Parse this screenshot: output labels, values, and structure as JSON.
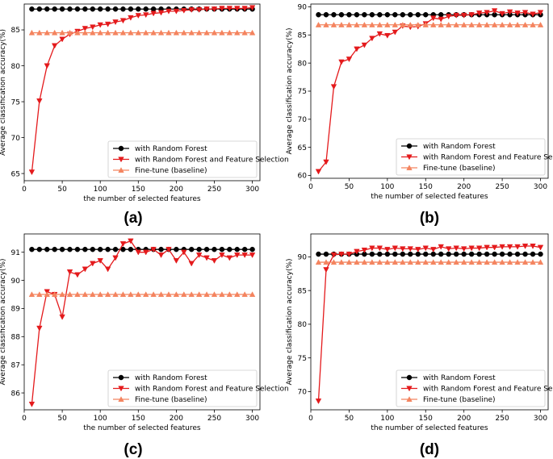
{
  "colors": {
    "rf": "#000000",
    "rffs": "#e41a1c",
    "baseline": "#f4845f"
  },
  "chart_data": [
    {
      "type": "line",
      "panel_label": "(a)",
      "xlabel": "the number of selected features",
      "ylabel": "Average classification accuracy(%)",
      "xlim": [
        0,
        310
      ],
      "ylim": [
        64,
        88.6
      ],
      "xticks": [
        "0",
        "50",
        "100",
        "150",
        "200",
        "250",
        "300"
      ],
      "xtick_values": [
        0,
        50,
        100,
        150,
        200,
        250,
        300
      ],
      "yticks": [
        "65",
        "70",
        "75",
        "80",
        "85"
      ],
      "ytick_values": [
        65,
        70,
        75,
        80,
        85
      ],
      "legend_position": "lower-right",
      "x": [
        10,
        20,
        30,
        40,
        50,
        60,
        70,
        80,
        90,
        100,
        110,
        120,
        130,
        140,
        150,
        160,
        170,
        180,
        190,
        200,
        210,
        220,
        230,
        240,
        250,
        260,
        270,
        280,
        290,
        300
      ],
      "series": [
        {
          "name": "with Random Forest",
          "marker": "circle",
          "values": [
            87.9,
            87.9,
            87.9,
            87.9,
            87.9,
            87.9,
            87.9,
            87.9,
            87.9,
            87.9,
            87.9,
            87.9,
            87.9,
            87.9,
            87.9,
            87.9,
            87.9,
            87.9,
            87.9,
            87.9,
            87.9,
            87.9,
            87.9,
            87.9,
            87.9,
            87.9,
            87.9,
            87.9,
            87.9,
            87.9
          ]
        },
        {
          "name": "with Random Forest and Feature Selection",
          "marker": "triangle-down",
          "values": [
            65.2,
            75.1,
            80.0,
            82.8,
            83.7,
            84.4,
            84.8,
            85.2,
            85.4,
            85.7,
            85.8,
            86.1,
            86.3,
            86.7,
            87.0,
            87.1,
            87.3,
            87.4,
            87.6,
            87.6,
            87.7,
            87.8,
            87.8,
            87.9,
            87.9,
            88.0,
            88.0,
            88.0,
            88.0,
            88.1
          ]
        },
        {
          "name": "Fine-tune (baseline)",
          "marker": "triangle-up",
          "values": [
            84.6,
            84.6,
            84.6,
            84.6,
            84.6,
            84.6,
            84.6,
            84.6,
            84.6,
            84.6,
            84.6,
            84.6,
            84.6,
            84.6,
            84.6,
            84.6,
            84.6,
            84.6,
            84.6,
            84.6,
            84.6,
            84.6,
            84.6,
            84.6,
            84.6,
            84.6,
            84.6,
            84.6,
            84.6,
            84.6
          ]
        }
      ]
    },
    {
      "type": "line",
      "panel_label": "(b)",
      "xlabel": "the number of selected features",
      "ylabel": "Average classification accuracy(%)",
      "xlim": [
        0,
        310
      ],
      "ylim": [
        59.5,
        90.5
      ],
      "xticks": [
        "0",
        "50",
        "100",
        "150",
        "200",
        "250",
        "300"
      ],
      "xtick_values": [
        0,
        50,
        100,
        150,
        200,
        250,
        300
      ],
      "yticks": [
        "60",
        "65",
        "70",
        "75",
        "80",
        "85",
        "90"
      ],
      "ytick_values": [
        60,
        65,
        70,
        75,
        80,
        85,
        90
      ],
      "legend_position": "lower-right",
      "x": [
        10,
        20,
        30,
        40,
        50,
        60,
        70,
        80,
        90,
        100,
        110,
        120,
        130,
        140,
        150,
        160,
        170,
        180,
        190,
        200,
        210,
        220,
        230,
        240,
        250,
        260,
        270,
        280,
        290,
        300
      ],
      "series": [
        {
          "name": "with Random Forest",
          "marker": "circle",
          "values": [
            88.6,
            88.6,
            88.6,
            88.6,
            88.6,
            88.6,
            88.6,
            88.6,
            88.6,
            88.6,
            88.6,
            88.6,
            88.6,
            88.6,
            88.6,
            88.6,
            88.6,
            88.6,
            88.6,
            88.6,
            88.6,
            88.6,
            88.6,
            88.6,
            88.6,
            88.6,
            88.6,
            88.6,
            88.6,
            88.6
          ]
        },
        {
          "name": "with Random Forest and Feature Selection",
          "marker": "triangle-down",
          "values": [
            60.7,
            62.4,
            75.8,
            80.2,
            80.7,
            82.5,
            83.2,
            84.4,
            85.2,
            84.9,
            85.5,
            86.6,
            86.4,
            86.5,
            87.0,
            88.0,
            87.8,
            88.3,
            88.5,
            88.5,
            88.6,
            88.9,
            89.0,
            89.3,
            88.8,
            89.1,
            88.9,
            89.0,
            88.7,
            89.0
          ]
        },
        {
          "name": "Fine-tune (baseline)",
          "marker": "triangle-up",
          "values": [
            86.8,
            86.8,
            86.8,
            86.8,
            86.8,
            86.8,
            86.8,
            86.8,
            86.8,
            86.8,
            86.8,
            86.8,
            86.8,
            86.8,
            86.8,
            86.8,
            86.8,
            86.8,
            86.8,
            86.8,
            86.8,
            86.8,
            86.8,
            86.8,
            86.8,
            86.8,
            86.8,
            86.8,
            86.8,
            86.8
          ]
        }
      ]
    },
    {
      "type": "line",
      "panel_label": "(c)",
      "xlabel": "the number of selected features",
      "ylabel": "Average classification accuracy(%)",
      "xlim": [
        0,
        310
      ],
      "ylim": [
        85.4,
        91.65
      ],
      "xticks": [
        "0",
        "50",
        "100",
        "150",
        "200",
        "250",
        "300"
      ],
      "xtick_values": [
        0,
        50,
        100,
        150,
        200,
        250,
        300
      ],
      "yticks": [
        "86",
        "87",
        "88",
        "89",
        "90",
        "91"
      ],
      "ytick_values": [
        86,
        87,
        88,
        89,
        90,
        91
      ],
      "legend_position": "lower-right",
      "x": [
        10,
        20,
        30,
        40,
        50,
        60,
        70,
        80,
        90,
        100,
        110,
        120,
        130,
        140,
        150,
        160,
        170,
        180,
        190,
        200,
        210,
        220,
        230,
        240,
        250,
        260,
        270,
        280,
        290,
        300
      ],
      "series": [
        {
          "name": "with Random Forest",
          "marker": "circle",
          "values": [
            91.1,
            91.1,
            91.1,
            91.1,
            91.1,
            91.1,
            91.1,
            91.1,
            91.1,
            91.1,
            91.1,
            91.1,
            91.1,
            91.1,
            91.1,
            91.1,
            91.1,
            91.1,
            91.1,
            91.1,
            91.1,
            91.1,
            91.1,
            91.1,
            91.1,
            91.1,
            91.1,
            91.1,
            91.1,
            91.1
          ]
        },
        {
          "name": "with Random Forest and Feature Selection",
          "marker": "triangle-down",
          "values": [
            85.6,
            88.3,
            89.6,
            89.5,
            88.7,
            90.3,
            90.2,
            90.4,
            90.6,
            90.7,
            90.4,
            90.8,
            91.3,
            91.4,
            91.0,
            91.0,
            91.1,
            90.9,
            91.1,
            90.7,
            91.0,
            90.6,
            90.9,
            90.8,
            90.7,
            90.9,
            90.8,
            90.9,
            90.9,
            90.9
          ]
        },
        {
          "name": "Fine-tune (baseline)",
          "marker": "triangle-up",
          "values": [
            89.5,
            89.5,
            89.5,
            89.5,
            89.5,
            89.5,
            89.5,
            89.5,
            89.5,
            89.5,
            89.5,
            89.5,
            89.5,
            89.5,
            89.5,
            89.5,
            89.5,
            89.5,
            89.5,
            89.5,
            89.5,
            89.5,
            89.5,
            89.5,
            89.5,
            89.5,
            89.5,
            89.5,
            89.5,
            89.5
          ]
        }
      ]
    },
    {
      "type": "line",
      "panel_label": "(d)",
      "xlabel": "the number of selected features",
      "ylabel": "Average classification accuracy(%)",
      "xlim": [
        0,
        310
      ],
      "ylim": [
        67.3,
        93.4
      ],
      "xticks": [
        "0",
        "50",
        "100",
        "150",
        "200",
        "250",
        "300"
      ],
      "xtick_values": [
        0,
        50,
        100,
        150,
        200,
        250,
        300
      ],
      "yticks": [
        "70",
        "75",
        "80",
        "85",
        "90"
      ],
      "ytick_values": [
        70,
        75,
        80,
        85,
        90
      ],
      "legend_position": "lower-right",
      "x": [
        10,
        20,
        30,
        40,
        50,
        60,
        70,
        80,
        90,
        100,
        110,
        120,
        130,
        140,
        150,
        160,
        170,
        180,
        190,
        200,
        210,
        220,
        230,
        240,
        250,
        260,
        270,
        280,
        290,
        300
      ],
      "series": [
        {
          "name": "with Random Forest",
          "marker": "circle",
          "values": [
            90.4,
            90.4,
            90.4,
            90.4,
            90.4,
            90.4,
            90.4,
            90.4,
            90.4,
            90.4,
            90.4,
            90.4,
            90.4,
            90.4,
            90.4,
            90.4,
            90.4,
            90.4,
            90.4,
            90.4,
            90.4,
            90.4,
            90.4,
            90.4,
            90.4,
            90.4,
            90.4,
            90.4,
            90.4,
            90.4
          ]
        },
        {
          "name": "with Random Forest and Feature Selection",
          "marker": "triangle-down",
          "values": [
            68.6,
            88.1,
            90.3,
            90.4,
            90.4,
            90.8,
            91.0,
            91.3,
            91.3,
            91.1,
            91.3,
            91.2,
            91.2,
            91.1,
            91.3,
            91.1,
            91.5,
            91.2,
            91.3,
            91.2,
            91.3,
            91.3,
            91.4,
            91.4,
            91.5,
            91.5,
            91.5,
            91.6,
            91.6,
            91.4
          ]
        },
        {
          "name": "Fine-tune (baseline)",
          "marker": "triangle-up",
          "values": [
            89.2,
            89.2,
            89.2,
            89.2,
            89.2,
            89.2,
            89.2,
            89.2,
            89.2,
            89.2,
            89.2,
            89.2,
            89.2,
            89.2,
            89.2,
            89.2,
            89.2,
            89.2,
            89.2,
            89.2,
            89.2,
            89.2,
            89.2,
            89.2,
            89.2,
            89.2,
            89.2,
            89.2,
            89.2,
            89.2
          ]
        }
      ]
    }
  ]
}
